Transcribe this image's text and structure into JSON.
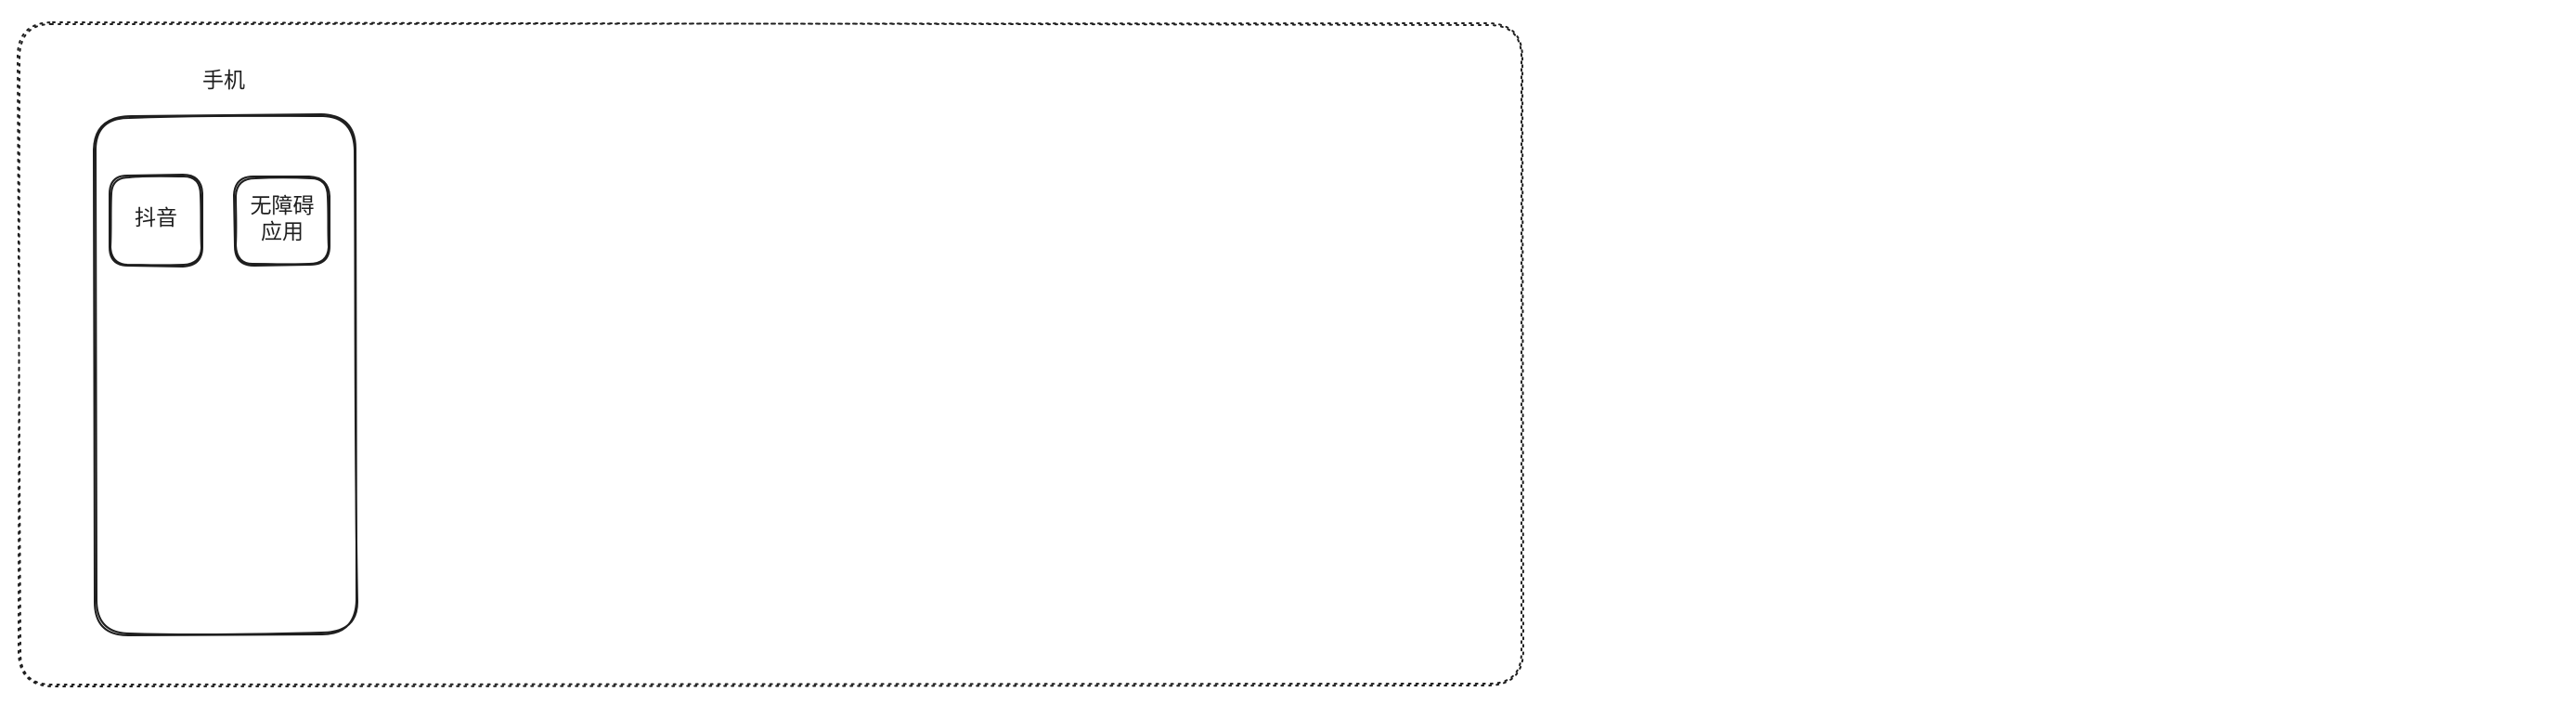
{
  "diagram": {
    "phone_label": "手机",
    "apps": [
      {
        "label": "抖音"
      },
      {
        "label": "无障碍\n应用"
      }
    ]
  },
  "colors": {
    "stroke": "#1e1e1e",
    "background": "#ffffff"
  }
}
